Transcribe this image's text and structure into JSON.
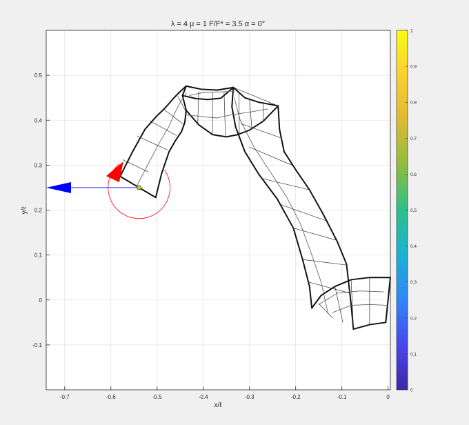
{
  "figure": {
    "title": "λ = 4  μ = 1  F/F* = 3.5  α = 0°"
  },
  "chart_data": {
    "type": "line",
    "title": "λ = 4  μ = 1  F/F* = 3.5  α = 0°",
    "xlabel": "x/ℓ",
    "ylabel": "y/ℓ",
    "xlim": [
      -0.74,
      0.005
    ],
    "ylim": [
      -0.2,
      0.6
    ],
    "xticks": [
      -0.7,
      -0.6,
      -0.5,
      -0.4,
      -0.3,
      -0.2,
      -0.1,
      0
    ],
    "yticks": [
      -0.1,
      0,
      0.1,
      0.2,
      0.3,
      0.4,
      0.5
    ],
    "grid": true,
    "colorbar": {
      "range": [
        0,
        1
      ],
      "ticks": [
        0,
        0.1,
        0.2,
        0.3,
        0.4,
        0.5,
        0.6,
        0.7,
        0.8,
        0.9,
        1
      ],
      "colormap": [
        "#3e26a8",
        "#4748f0",
        "#2e87f7",
        "#1ab2d5",
        "#2dc08a",
        "#8dbe3c",
        "#dfba30",
        "#fcce2e",
        "#f9fb15"
      ]
    },
    "series": [
      {
        "role": "rod-outline",
        "segments": [
          [
            [
              -0.58,
              0.275
            ],
            [
              -0.553,
              0.33
            ],
            [
              -0.526,
              0.38
            ],
            [
              -0.502,
              0.408
            ],
            [
              -0.482,
              0.428
            ],
            [
              -0.465,
              0.448
            ],
            [
              -0.452,
              0.462
            ],
            [
              -0.437,
              0.476
            ]
          ],
          [
            [
              -0.503,
              0.228
            ],
            [
              -0.49,
              0.282
            ],
            [
              -0.474,
              0.33
            ],
            [
              -0.46,
              0.355
            ],
            [
              -0.447,
              0.375
            ],
            [
              -0.44,
              0.395
            ],
            [
              -0.437,
              0.422
            ],
            [
              -0.445,
              0.455
            ],
            [
              -0.437,
              0.476
            ]
          ],
          [
            [
              -0.58,
              0.275
            ],
            [
              -0.503,
              0.228
            ]
          ],
          [
            [
              -0.437,
              0.476
            ],
            [
              -0.405,
              0.469
            ],
            [
              -0.37,
              0.467
            ],
            [
              -0.335,
              0.473
            ]
          ],
          [
            [
              -0.445,
              0.455
            ],
            [
              -0.415,
              0.448
            ],
            [
              -0.39,
              0.446
            ],
            [
              -0.362,
              0.449
            ],
            [
              -0.335,
              0.473
            ]
          ],
          [
            [
              -0.335,
              0.473
            ],
            [
              -0.31,
              0.45
            ],
            [
              -0.28,
              0.44
            ],
            [
              -0.238,
              0.432
            ]
          ],
          [
            [
              -0.437,
              0.422
            ],
            [
              -0.41,
              0.39
            ],
            [
              -0.38,
              0.368
            ],
            [
              -0.35,
              0.363
            ],
            [
              -0.325,
              0.368
            ],
            [
              -0.3,
              0.378
            ],
            [
              -0.27,
              0.398
            ],
            [
              -0.238,
              0.432
            ]
          ],
          [
            [
              -0.335,
              0.473
            ],
            [
              -0.338,
              0.43
            ],
            [
              -0.33,
              0.385
            ],
            [
              -0.31,
              0.33
            ],
            [
              -0.28,
              0.28
            ],
            [
              -0.24,
              0.225
            ],
            [
              -0.205,
              0.16
            ],
            [
              -0.185,
              0.09
            ],
            [
              -0.17,
              0.03
            ],
            [
              -0.165,
              -0.018
            ]
          ],
          [
            [
              -0.238,
              0.432
            ],
            [
              -0.235,
              0.38
            ],
            [
              -0.225,
              0.33
            ],
            [
              -0.2,
              0.29
            ],
            [
              -0.17,
              0.245
            ],
            [
              -0.14,
              0.19
            ],
            [
              -0.11,
              0.13
            ],
            [
              -0.09,
              0.08
            ],
            [
              -0.08,
              -0.01
            ],
            [
              -0.075,
              -0.065
            ]
          ],
          [
            [
              -0.165,
              -0.018
            ],
            [
              -0.145,
              0.01
            ],
            [
              -0.115,
              0.03
            ],
            [
              -0.08,
              0.045
            ],
            [
              -0.04,
              0.05
            ],
            [
              0.005,
              0.05
            ]
          ],
          [
            [
              -0.075,
              -0.065
            ],
            [
              -0.04,
              -0.055
            ],
            [
              -0.005,
              -0.05
            ]
          ],
          [
            [
              0.005,
              0.05
            ],
            [
              -0.005,
              -0.05
            ]
          ]
        ]
      },
      {
        "role": "fiber-lines",
        "segments": [
          [
            [
              -0.545,
              0.252
            ],
            [
              -0.518,
              0.305
            ],
            [
              -0.495,
              0.35
            ],
            [
              -0.475,
              0.385
            ],
            [
              -0.462,
              0.415
            ],
            [
              -0.45,
              0.44
            ],
            [
              -0.437,
              0.46
            ]
          ],
          [
            [
              -0.43,
              0.455
            ],
            [
              -0.398,
              0.462
            ],
            [
              -0.362,
              0.463
            ],
            [
              -0.333,
              0.465
            ]
          ],
          [
            [
              -0.44,
              0.412
            ],
            [
              -0.4,
              0.408
            ],
            [
              -0.37,
              0.405
            ],
            [
              -0.34,
              0.412
            ],
            [
              -0.3,
              0.418
            ],
            [
              -0.26,
              0.425
            ]
          ],
          [
            [
              -0.333,
              0.45
            ],
            [
              -0.32,
              0.4
            ],
            [
              -0.29,
              0.34
            ],
            [
              -0.255,
              0.285
            ],
            [
              -0.22,
              0.23
            ],
            [
              -0.19,
              0.17
            ],
            [
              -0.165,
              0.1
            ],
            [
              -0.145,
              0.04
            ],
            [
              -0.13,
              -0.03
            ]
          ],
          [
            [
              -0.15,
              -0.01
            ],
            [
              -0.11,
              0.015
            ],
            [
              -0.06,
              0.02
            ],
            [
              -0.01,
              0.018
            ]
          ],
          [
            [
              -0.12,
              -0.028
            ],
            [
              -0.08,
              -0.012
            ],
            [
              -0.04,
              -0.01
            ],
            [
              0.0,
              -0.012
            ]
          ]
        ]
      },
      {
        "role": "cross-sections",
        "segments": [
          [
            [
              -0.574,
              0.312
            ],
            [
              -0.519,
              0.285
            ]
          ],
          [
            [
              -0.543,
              0.365
            ],
            [
              -0.478,
              0.334
            ]
          ],
          [
            [
              -0.515,
              0.398
            ],
            [
              -0.458,
              0.366
            ]
          ],
          [
            [
              -0.485,
              0.424
            ],
            [
              -0.443,
              0.391
            ]
          ],
          [
            [
              -0.455,
              0.453
            ],
            [
              -0.438,
              0.42
            ]
          ],
          [
            [
              -0.41,
              0.464
            ],
            [
              -0.412,
              0.39
            ]
          ],
          [
            [
              -0.38,
              0.462
            ],
            [
              -0.38,
              0.368
            ]
          ],
          [
            [
              -0.355,
              0.462
            ],
            [
              -0.352,
              0.363
            ]
          ],
          [
            [
              -0.323,
              0.462
            ],
            [
              -0.322,
              0.368
            ]
          ],
          [
            [
              -0.3,
              0.448
            ],
            [
              -0.295,
              0.383
            ]
          ],
          [
            [
              -0.27,
              0.44
            ],
            [
              -0.27,
              0.398
            ]
          ],
          [
            [
              -0.335,
              0.473
            ],
            [
              -0.238,
              0.432
            ]
          ],
          [
            [
              -0.318,
              0.392
            ],
            [
              -0.23,
              0.36
            ]
          ],
          [
            [
              -0.3,
              0.34
            ],
            [
              -0.208,
              0.3
            ]
          ],
          [
            [
              -0.271,
              0.27
            ],
            [
              -0.17,
              0.245
            ]
          ],
          [
            [
              -0.232,
              0.212
            ],
            [
              -0.13,
              0.175
            ]
          ],
          [
            [
              -0.205,
              0.16
            ],
            [
              -0.112,
              0.133
            ]
          ],
          [
            [
              -0.185,
              0.09
            ],
            [
              -0.092,
              0.078
            ]
          ],
          [
            [
              -0.173,
              0.04
            ],
            [
              -0.082,
              0.015
            ]
          ],
          [
            [
              -0.15,
              -0.008
            ],
            [
              -0.12,
              -0.04
            ]
          ],
          [
            [
              -0.115,
              0.03
            ],
            [
              -0.098,
              -0.05
            ]
          ],
          [
            [
              -0.08,
              0.045
            ],
            [
              -0.075,
              -0.065
            ]
          ],
          [
            [
              -0.04,
              0.05
            ],
            [
              -0.04,
              -0.055
            ]
          ]
        ]
      }
    ],
    "annotations": {
      "load_point": [
        -0.539,
        0.25
      ],
      "force_arrow": {
        "from": [
          -0.539,
          0.25
        ],
        "to": [
          -0.74,
          0.25
        ],
        "color": "#0000ff"
      },
      "moment_circle": {
        "center": [
          -0.539,
          0.25
        ],
        "radius_x": 0.067,
        "color": "#ff0000"
      },
      "red_arrowhead": {
        "tip": [
          -0.573,
          0.308
        ],
        "color": "#ff0000"
      }
    }
  }
}
